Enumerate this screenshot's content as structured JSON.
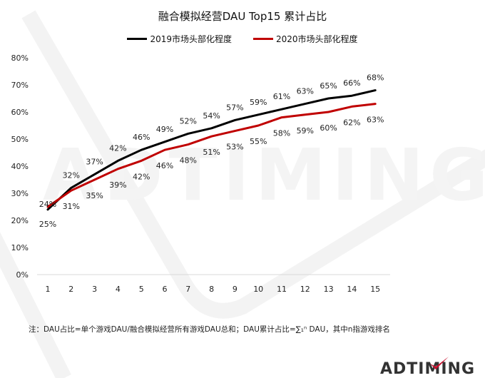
{
  "title": "融合模拟经营DAU Top15 累计占比",
  "legend": [
    {
      "label": "2019市场头部化程度",
      "color": "#000000"
    },
    {
      "label": "2020市场头部化程度",
      "color": "#c00000"
    }
  ],
  "note": "注：DAU占比=单个游戏DAU/融合模拟经营所有游戏DAU总和；DAU累计占比=∑₁ⁿ DAU，其中n指游戏排名",
  "logo": {
    "text": "ADTIMING",
    "accent_color": "#c8102e"
  },
  "watermark_text": "ADTIMING",
  "chart_data": {
    "type": "line",
    "title": "融合模拟经营DAU Top15 累计占比",
    "xlabel": "",
    "ylabel": "",
    "x": [
      1,
      2,
      3,
      4,
      5,
      6,
      7,
      8,
      9,
      10,
      11,
      12,
      13,
      14,
      15
    ],
    "y_ticks": [
      "0%",
      "10%",
      "20%",
      "30%",
      "40%",
      "50%",
      "60%",
      "70%",
      "80%"
    ],
    "ylim": [
      0,
      80
    ],
    "grid": false,
    "legend_position": "top",
    "series": [
      {
        "name": "2019市场头部化程度",
        "color": "#000000",
        "values": [
          24,
          32,
          37,
          42,
          46,
          49,
          52,
          54,
          57,
          59,
          61,
          63,
          65,
          66,
          68
        ]
      },
      {
        "name": "2020市场头部化程度",
        "color": "#c00000",
        "values": [
          25,
          31,
          35,
          39,
          42,
          46,
          48,
          51,
          53,
          55,
          58,
          59,
          60,
          62,
          63
        ]
      }
    ]
  }
}
